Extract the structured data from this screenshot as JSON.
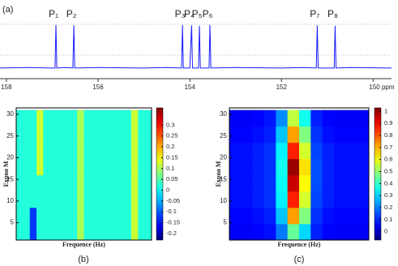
{
  "chart_data": [
    {
      "type": "line",
      "panel_label": "(a)",
      "color": "#1a1aff",
      "x": [
        158.14,
        157.5,
        157.0,
        156.94,
        156.92,
        156.9,
        156.7,
        156.55,
        156.53,
        156.51,
        156,
        155,
        154.5,
        154.18,
        154.16,
        154.14,
        154.0,
        153.96,
        153.94,
        153.81,
        153.79,
        153.77,
        153.58,
        153.56,
        153.54,
        153,
        152,
        151.5,
        151.24,
        151.22,
        151.2,
        150.9,
        150.85,
        150.83,
        150.81,
        150.5,
        149.6
      ],
      "values": [
        0.07,
        0.08,
        0.07,
        0.07,
        0.97,
        0.07,
        0.08,
        0.07,
        0.96,
        0.07,
        0.08,
        0.07,
        0.08,
        0.07,
        0.97,
        0.07,
        0.07,
        0.96,
        0.07,
        0.07,
        0.95,
        0.07,
        0.07,
        0.97,
        0.07,
        0.08,
        0.07,
        0.08,
        0.07,
        0.96,
        0.07,
        0.07,
        0.07,
        0.95,
        0.07,
        0.08,
        0.07
      ],
      "peaks": {
        "x": [
          156.92,
          156.53,
          154.16,
          153.96,
          153.79,
          153.56,
          151.22,
          150.83
        ],
        "labels": [
          "P₁",
          "P₂",
          "P₃",
          "P₄",
          "P₅",
          "P₆",
          "P₇",
          "P₈"
        ]
      },
      "xlim": [
        158.14,
        149.6
      ],
      "ylim": [
        0,
        1.05
      ],
      "xticks": [
        158,
        156,
        154,
        152,
        {
          "value": 150,
          "label": "150 ppm"
        }
      ]
    },
    {
      "type": "heatmap",
      "panel_label": "(b)",
      "xlabel": "Frequence (Hz)",
      "ylabel": "Expno M",
      "ybins": [
        1,
        8.5,
        16,
        23.5,
        31
      ],
      "ylim": [
        1,
        31.5
      ],
      "yticks": [
        5,
        10,
        15,
        20,
        25,
        30
      ],
      "zlim": [
        -0.23,
        0.38
      ],
      "zticks": [
        0.3,
        0.25,
        0.2,
        0.15,
        0.1,
        0.05,
        0,
        -0.05,
        -0.1,
        -0.15,
        -0.2
      ],
      "z": [
        [
          0.02,
          0.02,
          -0.12,
          0.02,
          0.02,
          0.02,
          0.02,
          0.02,
          0.02,
          0.1,
          0.02,
          0.02,
          0.02,
          0.02,
          0.02,
          0.02,
          0.02,
          0.12,
          0.02,
          0.02
        ],
        [
          0.02,
          0.02,
          0.02,
          0.02,
          0.02,
          0.02,
          0.02,
          0.02,
          0.02,
          0.1,
          0.02,
          0.02,
          0.02,
          0.02,
          0.02,
          0.02,
          0.02,
          0.12,
          0.02,
          0.02
        ],
        [
          0.02,
          0.02,
          0.02,
          0.12,
          0.02,
          0.02,
          0.02,
          0.02,
          0.02,
          0.1,
          0.02,
          0.02,
          0.02,
          0.02,
          0.02,
          0.02,
          0.02,
          0.12,
          0.02,
          0.02
        ],
        [
          0.02,
          0.02,
          0.02,
          0.12,
          0.02,
          0.02,
          0.02,
          0.02,
          0.02,
          0.1,
          0.02,
          0.02,
          0.02,
          0.02,
          0.02,
          0.02,
          0.02,
          0.12,
          0.02,
          0.02
        ]
      ]
    },
    {
      "type": "heatmap",
      "panel_label": "(c)",
      "xlabel": "Frequence (Hz)",
      "ylabel": "Expno M",
      "ybins": [
        1,
        4.75,
        8.5,
        12.25,
        16,
        19.75,
        23.5,
        27.25,
        31
      ],
      "ylim": [
        1,
        31.5
      ],
      "yticks": [
        5,
        10,
        15,
        20,
        25,
        30
      ],
      "zlim": [
        -0.07,
        1.03
      ],
      "zticks": [
        1,
        0.9,
        0.8,
        0.7,
        0.6,
        0.5,
        0.4,
        0.3,
        0.2,
        0.1,
        0
      ],
      "z": [
        [
          0.06,
          0.06,
          0.07,
          0.08,
          0.2,
          0.45,
          0.3,
          0.1,
          0.07,
          0.06,
          0.06,
          0.06
        ],
        [
          0.07,
          0.07,
          0.08,
          0.1,
          0.28,
          0.72,
          0.48,
          0.12,
          0.08,
          0.07,
          0.07,
          0.07
        ],
        [
          0.08,
          0.08,
          0.1,
          0.12,
          0.33,
          0.86,
          0.57,
          0.14,
          0.1,
          0.08,
          0.08,
          0.08
        ],
        [
          0.08,
          0.08,
          0.1,
          0.12,
          0.35,
          0.95,
          0.62,
          0.15,
          0.1,
          0.08,
          0.08,
          0.08
        ],
        [
          0.08,
          0.08,
          0.1,
          0.12,
          0.36,
          1,
          0.65,
          0.15,
          0.1,
          0.08,
          0.08,
          0.08
        ],
        [
          0.08,
          0.08,
          0.1,
          0.12,
          0.33,
          0.86,
          0.57,
          0.14,
          0.1,
          0.08,
          0.08,
          0.08
        ],
        [
          0.07,
          0.07,
          0.08,
          0.1,
          0.28,
          0.72,
          0.48,
          0.12,
          0.08,
          0.07,
          0.07,
          0.07
        ],
        [
          0.06,
          0.06,
          0.07,
          0.09,
          0.22,
          0.55,
          0.36,
          0.1,
          0.07,
          0.06,
          0.06,
          0.06
        ]
      ]
    }
  ]
}
